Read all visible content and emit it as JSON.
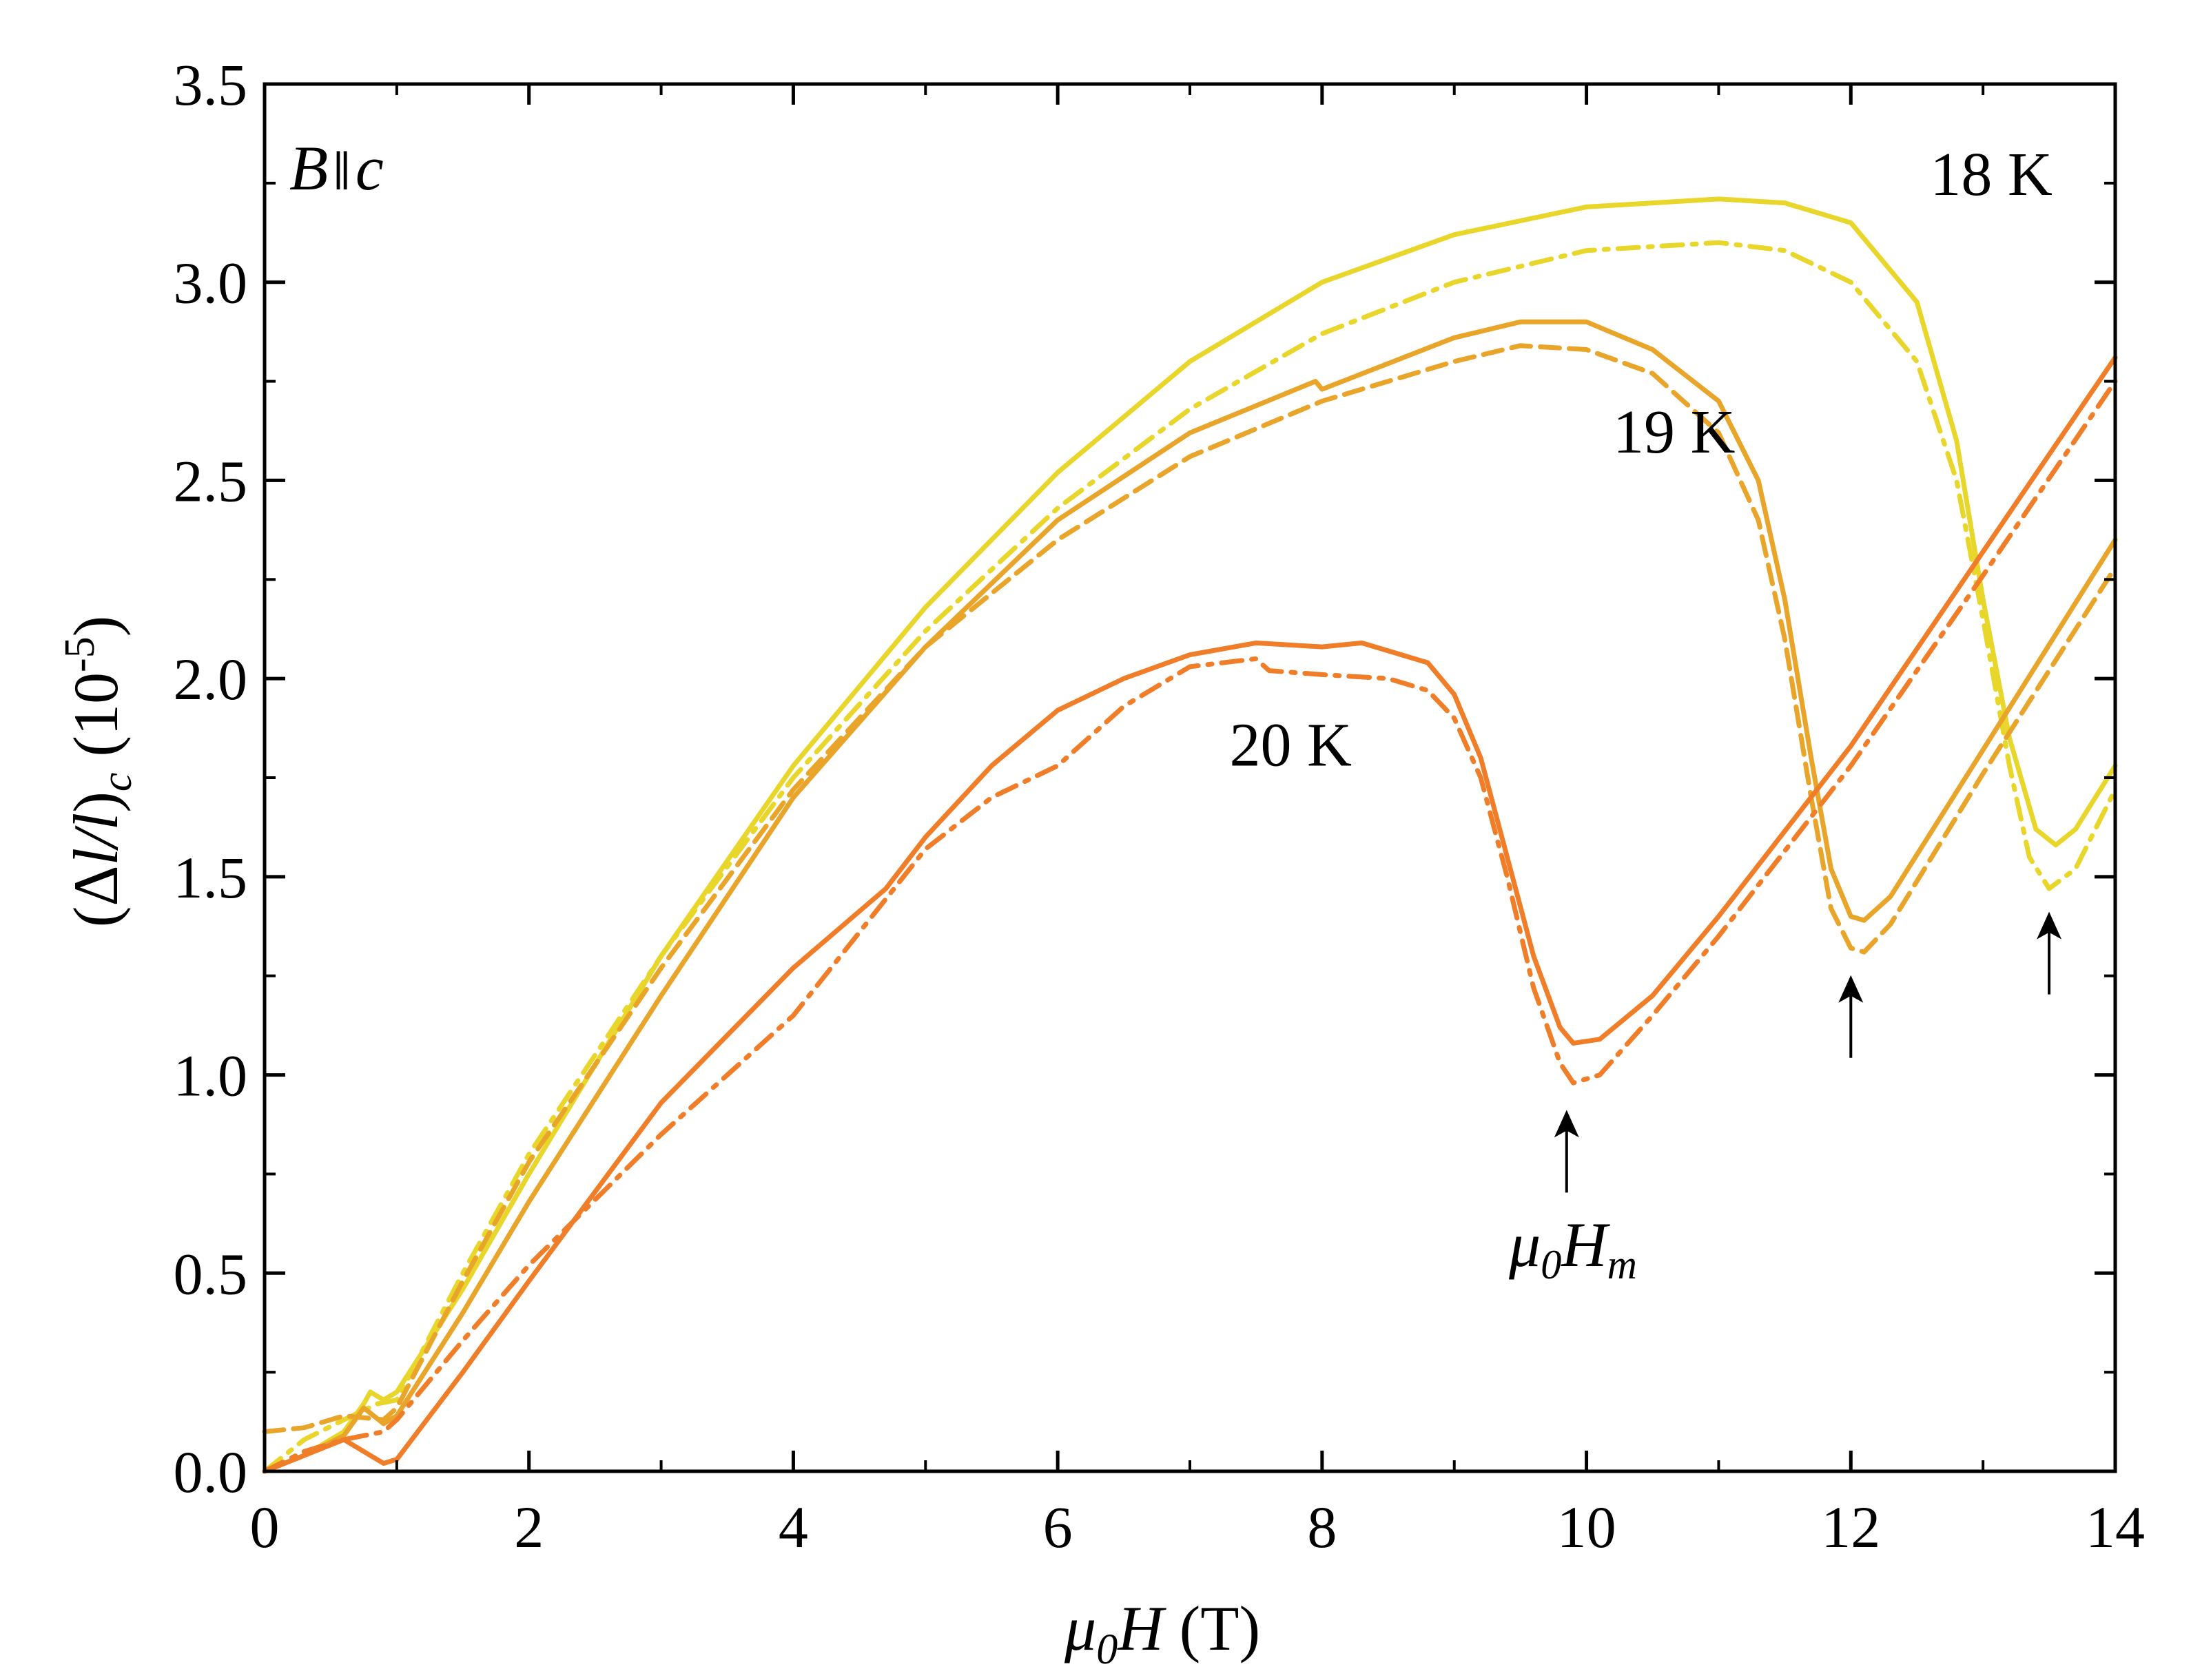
{
  "chart_data": {
    "type": "line",
    "title": "",
    "annotation": {
      "field": "B",
      "parallel": "∥",
      "axis": "c"
    },
    "xlabel": {
      "mu": "μ",
      "sub": "0",
      "var": "H",
      "unit": " (T)"
    },
    "ylabel": {
      "paren": "(Δ",
      "l1": "l",
      "slash": "/",
      "l2": "l",
      "close": ")",
      "sub": "c",
      "unit": " (10",
      "exp": "-5",
      "end": ")"
    },
    "xlim": [
      0,
      14
    ],
    "ylim": [
      0,
      3.5
    ],
    "x_ticks": [
      "0",
      "2",
      "4",
      "6",
      "8",
      "10",
      "12",
      "14"
    ],
    "y_ticks": [
      "0.0",
      "0.5",
      "1.0",
      "1.5",
      "2.0",
      "2.5",
      "3.0",
      "3.5"
    ],
    "colors": {
      "T18": "#e8d62a",
      "T19": "#e8a52a",
      "T20": "#f07d28"
    },
    "series": [
      {
        "name": "18 K up",
        "label": "18 K",
        "color": "#e8d62a",
        "style": "solid",
        "points": [
          [
            0,
            0
          ],
          [
            0.3,
            0.04
          ],
          [
            0.6,
            0.1
          ],
          [
            0.75,
            0.17
          ],
          [
            0.8,
            0.2
          ],
          [
            0.9,
            0.18
          ],
          [
            1.0,
            0.2
          ],
          [
            1.5,
            0.46
          ],
          [
            2,
            0.75
          ],
          [
            3,
            1.3
          ],
          [
            4,
            1.78
          ],
          [
            5,
            2.18
          ],
          [
            6,
            2.52
          ],
          [
            7,
            2.8
          ],
          [
            8,
            3.0
          ],
          [
            9,
            3.12
          ],
          [
            10,
            3.19
          ],
          [
            11,
            3.21
          ],
          [
            11.5,
            3.2
          ],
          [
            12,
            3.15
          ],
          [
            12.5,
            2.95
          ],
          [
            12.8,
            2.6
          ],
          [
            13.0,
            2.2
          ],
          [
            13.2,
            1.85
          ],
          [
            13.4,
            1.62
          ],
          [
            13.55,
            1.58
          ],
          [
            13.7,
            1.62
          ],
          [
            14,
            1.78
          ]
        ]
      },
      {
        "name": "18 K down",
        "color": "#e8d62a",
        "style": "dashdot",
        "points": [
          [
            0,
            0
          ],
          [
            0.3,
            0.08
          ],
          [
            0.6,
            0.13
          ],
          [
            0.85,
            0.17
          ],
          [
            1.0,
            0.18
          ],
          [
            1.5,
            0.5
          ],
          [
            2,
            0.8
          ],
          [
            3,
            1.3
          ],
          [
            4,
            1.75
          ],
          [
            5,
            2.12
          ],
          [
            6,
            2.43
          ],
          [
            7,
            2.68
          ],
          [
            8,
            2.87
          ],
          [
            9,
            3.0
          ],
          [
            10,
            3.08
          ],
          [
            11,
            3.1
          ],
          [
            11.5,
            3.08
          ],
          [
            12,
            3.0
          ],
          [
            12.5,
            2.8
          ],
          [
            12.8,
            2.5
          ],
          [
            13.0,
            2.15
          ],
          [
            13.2,
            1.78
          ],
          [
            13.35,
            1.55
          ],
          [
            13.5,
            1.47
          ],
          [
            13.7,
            1.52
          ],
          [
            14,
            1.72
          ]
        ]
      },
      {
        "name": "19 K up",
        "label": "19 K",
        "color": "#e8a52a",
        "style": "solid",
        "points": [
          [
            0,
            0
          ],
          [
            0.3,
            0.04
          ],
          [
            0.6,
            0.09
          ],
          [
            0.75,
            0.16
          ],
          [
            0.9,
            0.12
          ],
          [
            1.0,
            0.14
          ],
          [
            1.5,
            0.4
          ],
          [
            2,
            0.68
          ],
          [
            3,
            1.2
          ],
          [
            4,
            1.7
          ],
          [
            5,
            2.08
          ],
          [
            6,
            2.4
          ],
          [
            7,
            2.62
          ],
          [
            7.95,
            2.75
          ],
          [
            8,
            2.73
          ],
          [
            9,
            2.86
          ],
          [
            9.5,
            2.9
          ],
          [
            10,
            2.9
          ],
          [
            10.5,
            2.83
          ],
          [
            11,
            2.7
          ],
          [
            11.3,
            2.5
          ],
          [
            11.5,
            2.2
          ],
          [
            11.7,
            1.8
          ],
          [
            11.85,
            1.52
          ],
          [
            12,
            1.4
          ],
          [
            12.1,
            1.39
          ],
          [
            12.3,
            1.45
          ],
          [
            13,
            1.82
          ],
          [
            14,
            2.35
          ]
        ]
      },
      {
        "name": "19 K down",
        "color": "#e8a52a",
        "style": "dashed",
        "points": [
          [
            0,
            0.1
          ],
          [
            0.3,
            0.11
          ],
          [
            0.6,
            0.14
          ],
          [
            0.9,
            0.13
          ],
          [
            1.0,
            0.16
          ],
          [
            1.5,
            0.48
          ],
          [
            2,
            0.78
          ],
          [
            3,
            1.27
          ],
          [
            4,
            1.72
          ],
          [
            5,
            2.08
          ],
          [
            6,
            2.35
          ],
          [
            7,
            2.56
          ],
          [
            8,
            2.7
          ],
          [
            9,
            2.8
          ],
          [
            9.5,
            2.84
          ],
          [
            10,
            2.83
          ],
          [
            10.5,
            2.77
          ],
          [
            11,
            2.62
          ],
          [
            11.3,
            2.4
          ],
          [
            11.5,
            2.1
          ],
          [
            11.7,
            1.7
          ],
          [
            11.85,
            1.42
          ],
          [
            12,
            1.32
          ],
          [
            12.1,
            1.31
          ],
          [
            12.3,
            1.38
          ],
          [
            13,
            1.76
          ],
          [
            14,
            2.28
          ]
        ]
      },
      {
        "name": "20 K up",
        "label": "20 K",
        "color": "#f07d28",
        "style": "solid",
        "points": [
          [
            0,
            0
          ],
          [
            0.3,
            0.04
          ],
          [
            0.6,
            0.08
          ],
          [
            0.8,
            0.04
          ],
          [
            0.9,
            0.02
          ],
          [
            1.0,
            0.03
          ],
          [
            1.5,
            0.25
          ],
          [
            2,
            0.48
          ],
          [
            3,
            0.93
          ],
          [
            4,
            1.27
          ],
          [
            4.7,
            1.47
          ],
          [
            5,
            1.6
          ],
          [
            5.5,
            1.78
          ],
          [
            6,
            1.92
          ],
          [
            6.5,
            2.0
          ],
          [
            7,
            2.06
          ],
          [
            7.5,
            2.09
          ],
          [
            8,
            2.08
          ],
          [
            8.3,
            2.09
          ],
          [
            8.8,
            2.04
          ],
          [
            9.0,
            1.96
          ],
          [
            9.2,
            1.8
          ],
          [
            9.4,
            1.55
          ],
          [
            9.6,
            1.3
          ],
          [
            9.8,
            1.12
          ],
          [
            9.9,
            1.08
          ],
          [
            10.1,
            1.09
          ],
          [
            10.5,
            1.2
          ],
          [
            11,
            1.4
          ],
          [
            12,
            1.83
          ],
          [
            13,
            2.32
          ],
          [
            14,
            2.81
          ]
        ]
      },
      {
        "name": "20 K down",
        "color": "#f07d28",
        "style": "dashdot",
        "points": [
          [
            0,
            0
          ],
          [
            0.3,
            0.05
          ],
          [
            0.6,
            0.08
          ],
          [
            0.9,
            0.1
          ],
          [
            1.0,
            0.13
          ],
          [
            1.5,
            0.33
          ],
          [
            2,
            0.52
          ],
          [
            3,
            0.85
          ],
          [
            3.5,
            1.0
          ],
          [
            4,
            1.15
          ],
          [
            5,
            1.57
          ],
          [
            5.5,
            1.7
          ],
          [
            6,
            1.78
          ],
          [
            6.5,
            1.93
          ],
          [
            7,
            2.03
          ],
          [
            7.5,
            2.05
          ],
          [
            7.6,
            2.02
          ],
          [
            8,
            2.01
          ],
          [
            8.5,
            2.0
          ],
          [
            8.8,
            1.97
          ],
          [
            9.0,
            1.9
          ],
          [
            9.2,
            1.75
          ],
          [
            9.4,
            1.5
          ],
          [
            9.6,
            1.22
          ],
          [
            9.8,
            1.03
          ],
          [
            9.9,
            0.98
          ],
          [
            10.1,
            1.0
          ],
          [
            10.5,
            1.15
          ],
          [
            11,
            1.35
          ],
          [
            12,
            1.78
          ],
          [
            13,
            2.26
          ],
          [
            14,
            2.75
          ]
        ]
      }
    ],
    "arrows": [
      {
        "x": 9.85,
        "y": 0.95
      },
      {
        "x": 12.0,
        "y": 1.29
      },
      {
        "x": 13.5,
        "y": 1.45
      }
    ],
    "arrow_label": {
      "mu": "μ",
      "sub0": "0",
      "var": "H",
      "subm": "m"
    },
    "series_label_positions": {
      "T18": {
        "x": 12.6,
        "y": 3.22
      },
      "T19": {
        "x": 10.2,
        "y": 2.57
      },
      "T20": {
        "x": 7.3,
        "y": 1.78
      }
    }
  }
}
